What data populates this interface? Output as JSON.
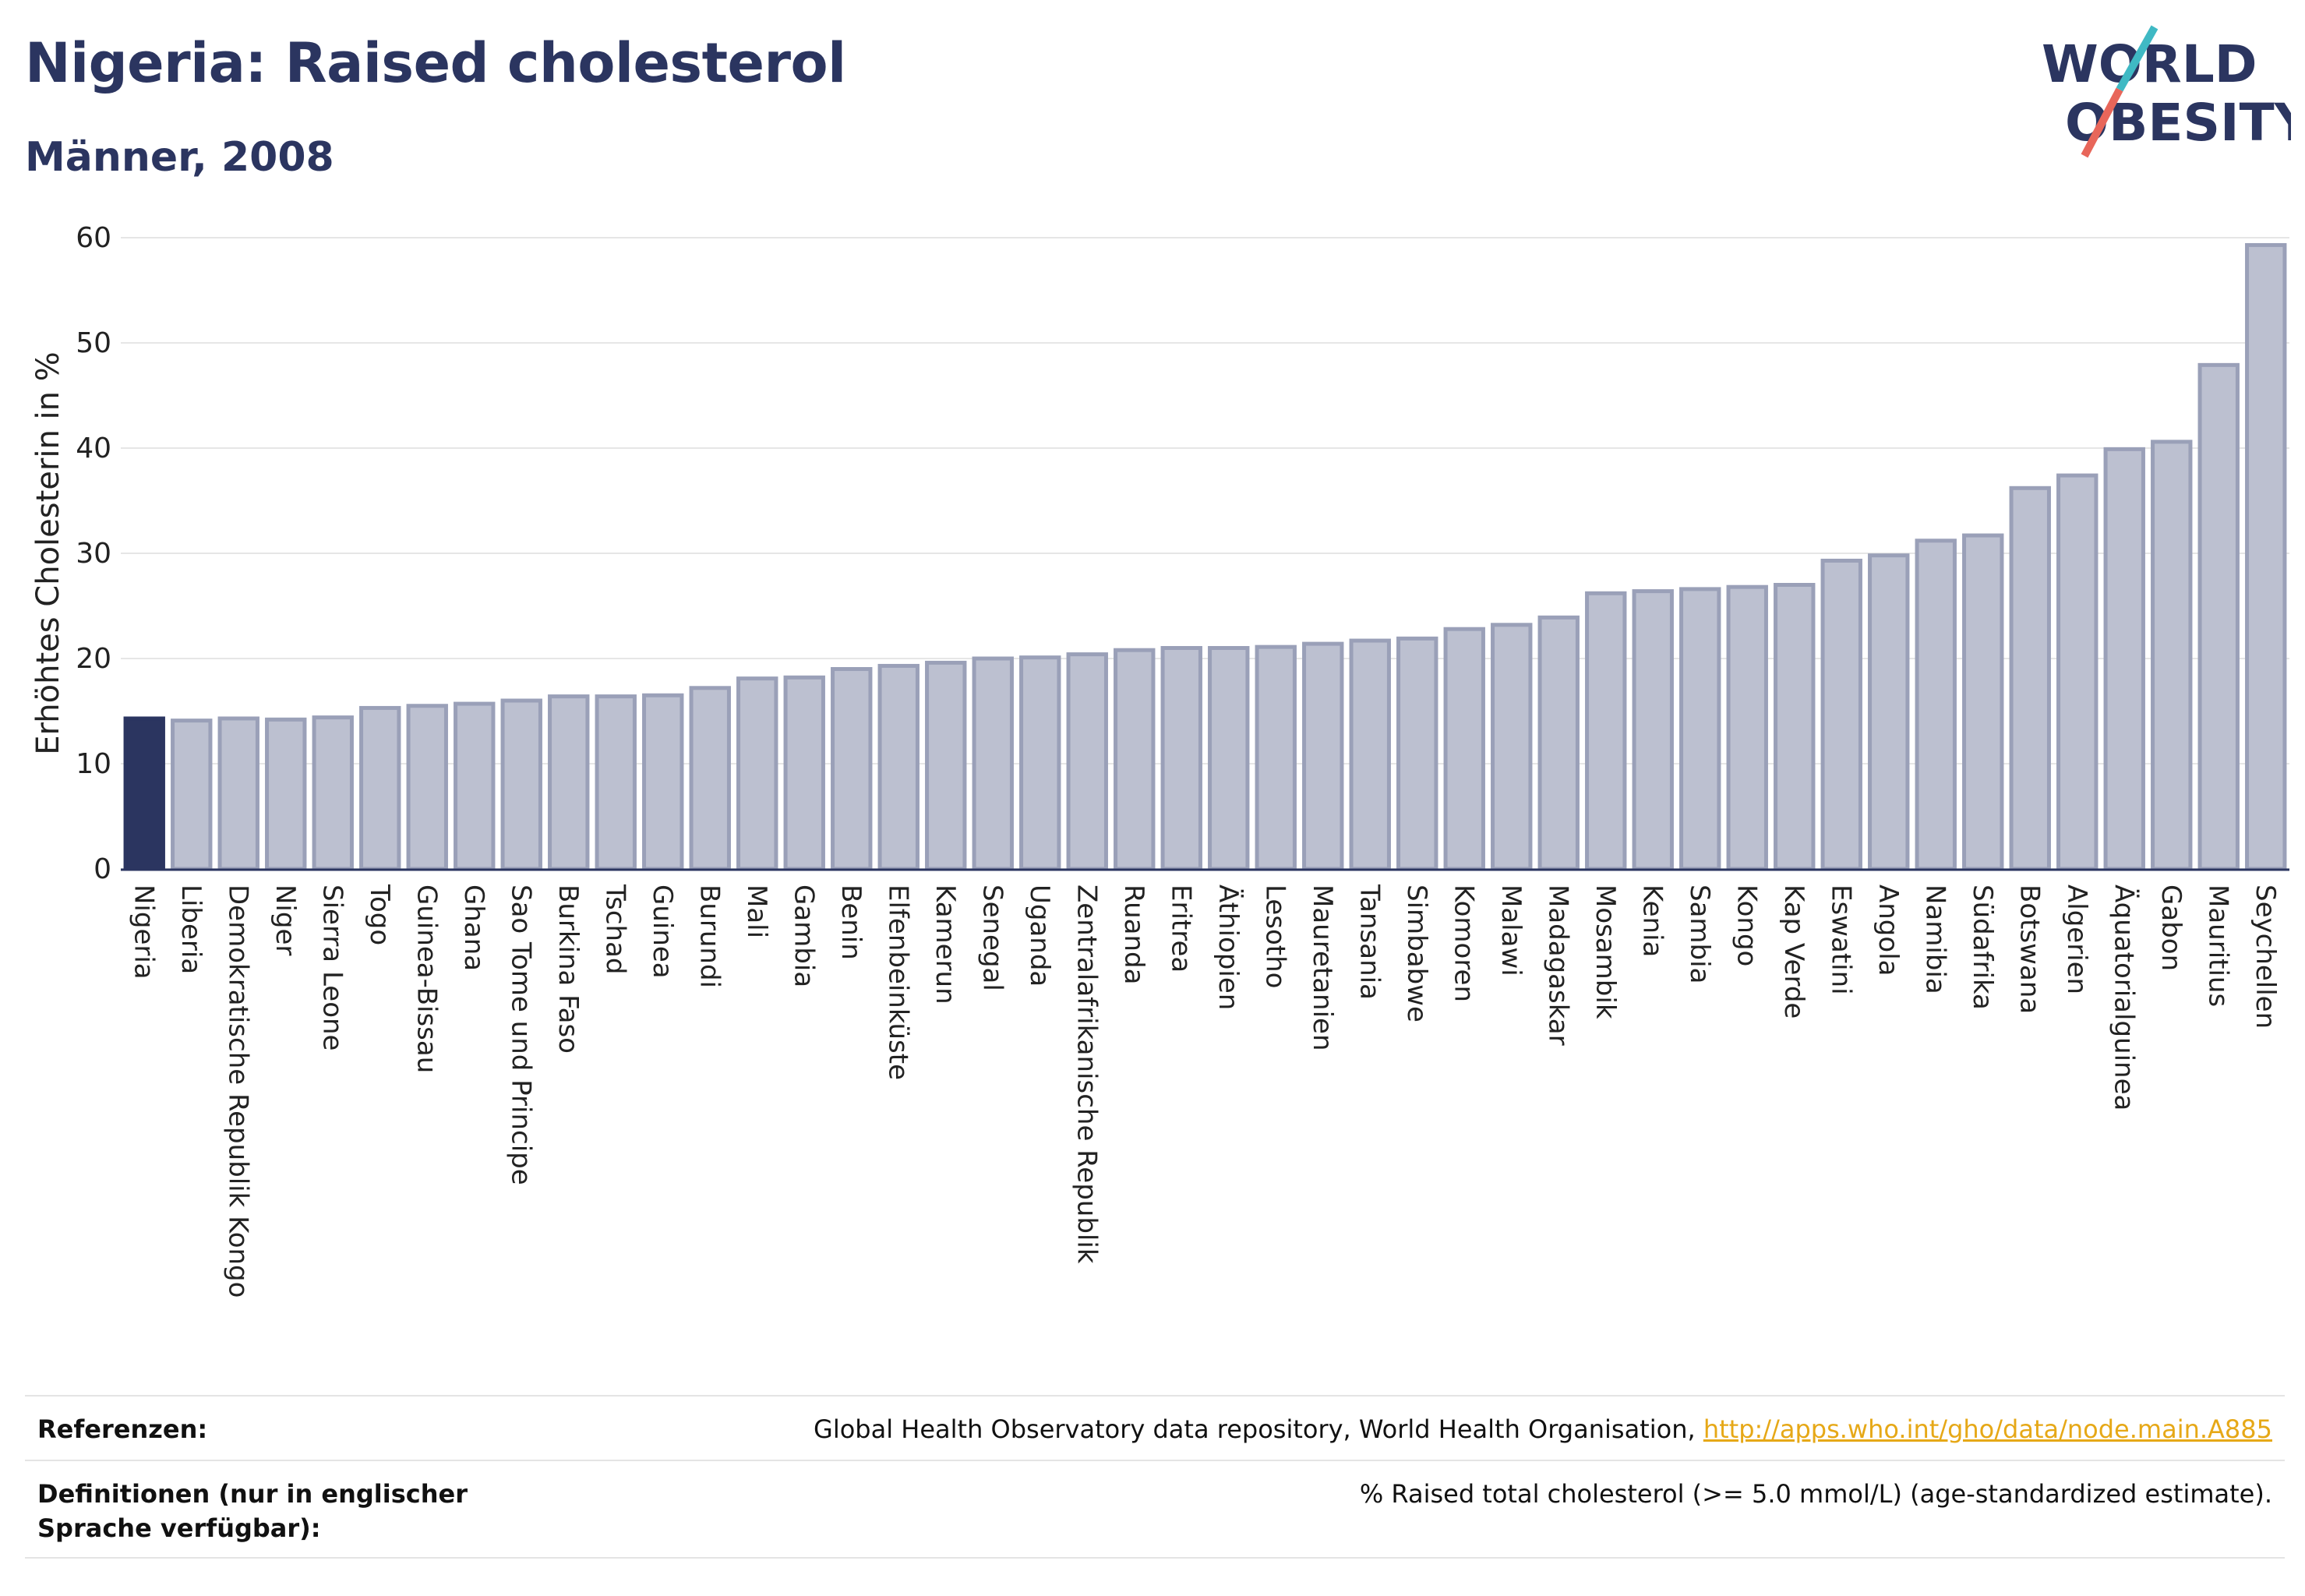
{
  "header": {
    "title": "Nigeria: Raised cholesterol",
    "subtitle": "Männer, 2008"
  },
  "logo": {
    "line1": "WORLD",
    "line2": "OBESITY",
    "slash_colors": [
      "#3fb9c4",
      "#e8665a"
    ]
  },
  "chart_data": {
    "type": "bar",
    "ylabel": "Erhöhtes Cholesterin in %",
    "ylim": [
      0,
      60
    ],
    "yticks": [
      0,
      10,
      20,
      30,
      40,
      50,
      60
    ],
    "grid": true,
    "highlight_color": "#2b3560",
    "bar_color": "#bcc0d0",
    "bar_edge_color": "#9aa0b8",
    "categories": [
      "Nigeria",
      "Liberia",
      "Demokratische Republik Kongo",
      "Niger",
      "Sierra Leone",
      "Togo",
      "Guinea-Bissau",
      "Ghana",
      "Sao Tome und Principe",
      "Burkina Faso",
      "Tschad",
      "Guinea",
      "Burundi",
      "Mali",
      "Gambia",
      "Benin",
      "Elfenbeinküste",
      "Kamerun",
      "Senegal",
      "Uganda",
      "Zentralafrikanische Republik",
      "Ruanda",
      "Eritrea",
      "Äthiopien",
      "Lesotho",
      "Mauretanien",
      "Tansania",
      "Simbabwe",
      "Komoren",
      "Malawi",
      "Madagaskar",
      "Mosambik",
      "Kenia",
      "Sambia",
      "Kongo",
      "Kap Verde",
      "Eswatini",
      "Angola",
      "Namibia",
      "Südafrika",
      "Botswana",
      "Algerien",
      "Äquatorialguinea",
      "Gabon",
      "Mauritius",
      "Seychellen"
    ],
    "values": [
      14.3,
      14.1,
      14.3,
      14.2,
      14.4,
      15.3,
      15.5,
      15.7,
      16.0,
      16.4,
      16.4,
      16.5,
      17.2,
      18.1,
      18.2,
      19.0,
      19.3,
      19.6,
      20.0,
      20.1,
      20.4,
      20.8,
      21.0,
      21.0,
      21.1,
      21.4,
      21.7,
      21.9,
      22.8,
      23.2,
      23.9,
      26.2,
      26.4,
      26.6,
      26.8,
      27.0,
      29.3,
      29.8,
      31.2,
      31.7,
      36.2,
      37.4,
      39.9,
      40.6,
      47.9,
      59.3
    ],
    "highlight_index": 0
  },
  "footer": {
    "references_label": "Referenzen:",
    "references_text": "Global Health Observatory data repository, World Health Organisation, ",
    "references_link": "http://apps.who.int/gho/data/node.main.A885",
    "definitions_label": "Definitionen (nur in englischer Sprache verfügbar):",
    "definitions_text": "% Raised total cholesterol (>= 5.0 mmol/L) (age-standardized estimate)."
  }
}
